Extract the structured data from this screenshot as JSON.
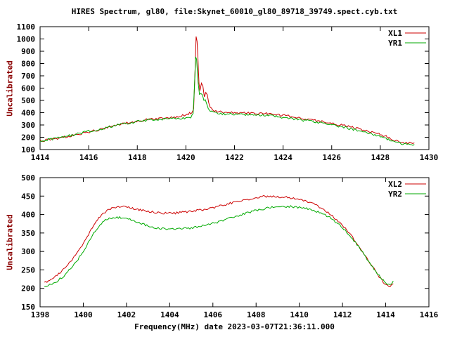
{
  "title": "HIRES Spectrum, gl80, file:Skynet_60010_gl80_89718_39749.spect.cyb.txt",
  "colors": {
    "red": "#cc0000",
    "green": "#00aa00",
    "text": "#000000",
    "ylabel_text": "#8b0000"
  },
  "chart_data": [
    {
      "type": "line",
      "ylabel": "Uncalibrated",
      "xlabel": "",
      "xlim": [
        1414,
        1430
      ],
      "ylim": [
        100,
        1100
      ],
      "xticks": [
        1414,
        1416,
        1418,
        1420,
        1422,
        1424,
        1426,
        1428,
        1430
      ],
      "yticks": [
        100,
        200,
        300,
        400,
        500,
        600,
        700,
        800,
        900,
        1000,
        1100
      ],
      "legend_position": "top-right",
      "grid": false,
      "series": [
        {
          "name": "XL1",
          "color": "#cc0000",
          "points": [
            [
              1414.0,
              170
            ],
            [
              1414.3,
              178
            ],
            [
              1414.6,
              188
            ],
            [
              1415.0,
              202
            ],
            [
              1415.4,
              218
            ],
            [
              1415.8,
              235
            ],
            [
              1416.2,
              252
            ],
            [
              1416.6,
              268
            ],
            [
              1417.0,
              292
            ],
            [
              1417.4,
              310
            ],
            [
              1417.8,
              325
            ],
            [
              1418.2,
              338
            ],
            [
              1418.6,
              348
            ],
            [
              1419.0,
              355
            ],
            [
              1419.4,
              362
            ],
            [
              1419.8,
              372
            ],
            [
              1420.0,
              385
            ],
            [
              1420.15,
              395
            ],
            [
              1420.25,
              400
            ],
            [
              1420.32,
              430
            ],
            [
              1420.38,
              760
            ],
            [
              1420.42,
              1020
            ],
            [
              1420.46,
              980
            ],
            [
              1420.5,
              820
            ],
            [
              1420.54,
              640
            ],
            [
              1420.58,
              580
            ],
            [
              1420.64,
              640
            ],
            [
              1420.7,
              615
            ],
            [
              1420.76,
              530
            ],
            [
              1420.82,
              560
            ],
            [
              1420.88,
              545
            ],
            [
              1420.94,
              480
            ],
            [
              1421.0,
              440
            ],
            [
              1421.1,
              420
            ],
            [
              1421.3,
              408
            ],
            [
              1421.6,
              402
            ],
            [
              1422.0,
              400
            ],
            [
              1422.4,
              398
            ],
            [
              1422.8,
              395
            ],
            [
              1423.2,
              392
            ],
            [
              1423.6,
              388
            ],
            [
              1424.0,
              378
            ],
            [
              1424.4,
              366
            ],
            [
              1424.8,
              352
            ],
            [
              1425.2,
              340
            ],
            [
              1425.6,
              328
            ],
            [
              1426.0,
              312
            ],
            [
              1426.4,
              298
            ],
            [
              1426.8,
              282
            ],
            [
              1427.2,
              264
            ],
            [
              1427.6,
              246
            ],
            [
              1428.0,
              224
            ],
            [
              1428.3,
              202
            ],
            [
              1428.6,
              175
            ],
            [
              1428.8,
              162
            ],
            [
              1429.0,
              156
            ],
            [
              1429.2,
              154
            ],
            [
              1429.4,
              155
            ]
          ]
        },
        {
          "name": "YR1",
          "color": "#00aa00",
          "points": [
            [
              1414.0,
              172
            ],
            [
              1414.4,
              182
            ],
            [
              1414.8,
              196
            ],
            [
              1415.2,
              212
            ],
            [
              1415.6,
              230
            ],
            [
              1416.0,
              248
            ],
            [
              1416.4,
              264
            ],
            [
              1416.8,
              282
            ],
            [
              1417.2,
              300
            ],
            [
              1417.6,
              315
            ],
            [
              1418.0,
              328
            ],
            [
              1418.4,
              338
            ],
            [
              1418.8,
              344
            ],
            [
              1419.2,
              348
            ],
            [
              1419.6,
              352
            ],
            [
              1420.0,
              358
            ],
            [
              1420.2,
              366
            ],
            [
              1420.3,
              395
            ],
            [
              1420.36,
              640
            ],
            [
              1420.4,
              855
            ],
            [
              1420.44,
              835
            ],
            [
              1420.5,
              650
            ],
            [
              1420.56,
              545
            ],
            [
              1420.62,
              560
            ],
            [
              1420.68,
              545
            ],
            [
              1420.74,
              495
            ],
            [
              1420.8,
              505
            ],
            [
              1420.86,
              470
            ],
            [
              1420.92,
              440
            ],
            [
              1421.0,
              415
            ],
            [
              1421.2,
              398
            ],
            [
              1421.5,
              390
            ],
            [
              1422.0,
              386
            ],
            [
              1422.5,
              383
            ],
            [
              1423.0,
              380
            ],
            [
              1423.5,
              374
            ],
            [
              1424.0,
              362
            ],
            [
              1424.5,
              348
            ],
            [
              1425.0,
              334
            ],
            [
              1425.5,
              318
            ],
            [
              1426.0,
              300
            ],
            [
              1426.5,
              280
            ],
            [
              1427.0,
              258
            ],
            [
              1427.5,
              234
            ],
            [
              1428.0,
              206
            ],
            [
              1428.4,
              176
            ],
            [
              1428.8,
              152
            ],
            [
              1429.1,
              143
            ],
            [
              1429.4,
              142
            ]
          ]
        }
      ]
    },
    {
      "type": "line",
      "ylabel": "Uncalibrated",
      "xlabel": "Frequency(MHz) date 2023-03-07T21:36:11.000",
      "xlim": [
        1398,
        1416
      ],
      "ylim": [
        150,
        500
      ],
      "xticks": [
        1398,
        1400,
        1402,
        1404,
        1406,
        1408,
        1410,
        1412,
        1414,
        1416
      ],
      "yticks": [
        150,
        200,
        250,
        300,
        350,
        400,
        450,
        500
      ],
      "legend_position": "top-right",
      "grid": false,
      "series": [
        {
          "name": "XL2",
          "color": "#cc0000",
          "points": [
            [
              1398.2,
              215
            ],
            [
              1398.5,
              222
            ],
            [
              1398.8,
              235
            ],
            [
              1399.1,
              252
            ],
            [
              1399.4,
              272
            ],
            [
              1399.7,
              296
            ],
            [
              1400.0,
              322
            ],
            [
              1400.3,
              352
            ],
            [
              1400.6,
              382
            ],
            [
              1400.9,
              402
            ],
            [
              1401.2,
              414
            ],
            [
              1401.5,
              420
            ],
            [
              1401.8,
              422
            ],
            [
              1402.1,
              420
            ],
            [
              1402.4,
              415
            ],
            [
              1402.7,
              411
            ],
            [
              1403.0,
              408
            ],
            [
              1403.4,
              405
            ],
            [
              1403.8,
              404
            ],
            [
              1404.2,
              404
            ],
            [
              1404.6,
              406
            ],
            [
              1405.0,
              409
            ],
            [
              1405.4,
              412
            ],
            [
              1405.8,
              416
            ],
            [
              1406.2,
              421
            ],
            [
              1406.6,
              427
            ],
            [
              1407.0,
              433
            ],
            [
              1407.4,
              439
            ],
            [
              1407.8,
              444
            ],
            [
              1408.2,
              448
            ],
            [
              1408.6,
              450
            ],
            [
              1409.0,
              449
            ],
            [
              1409.4,
              447
            ],
            [
              1409.8,
              443
            ],
            [
              1410.2,
              438
            ],
            [
              1410.6,
              430
            ],
            [
              1411.0,
              418
            ],
            [
              1411.4,
              402
            ],
            [
              1411.8,
              382
            ],
            [
              1412.2,
              358
            ],
            [
              1412.6,
              328
            ],
            [
              1413.0,
              294
            ],
            [
              1413.4,
              258
            ],
            [
              1413.7,
              232
            ],
            [
              1414.0,
              210
            ],
            [
              1414.2,
              205
            ],
            [
              1414.35,
              212
            ]
          ]
        },
        {
          "name": "YR2",
          "color": "#00aa00",
          "points": [
            [
              1398.2,
              205
            ],
            [
              1398.5,
              210
            ],
            [
              1398.8,
              220
            ],
            [
              1399.1,
              234
            ],
            [
              1399.4,
              252
            ],
            [
              1399.7,
              274
            ],
            [
              1400.0,
              300
            ],
            [
              1400.3,
              330
            ],
            [
              1400.6,
              360
            ],
            [
              1400.9,
              380
            ],
            [
              1401.2,
              389
            ],
            [
              1401.5,
              392
            ],
            [
              1401.8,
              391
            ],
            [
              1402.1,
              387
            ],
            [
              1402.4,
              381
            ],
            [
              1402.7,
              375
            ],
            [
              1403.0,
              370
            ],
            [
              1403.4,
              364
            ],
            [
              1403.8,
              361
            ],
            [
              1404.2,
              360
            ],
            [
              1404.6,
              361
            ],
            [
              1405.0,
              364
            ],
            [
              1405.4,
              368
            ],
            [
              1405.8,
              373
            ],
            [
              1406.2,
              379
            ],
            [
              1406.6,
              386
            ],
            [
              1407.0,
              394
            ],
            [
              1407.4,
              401
            ],
            [
              1407.8,
              408
            ],
            [
              1408.2,
              414
            ],
            [
              1408.6,
              418
            ],
            [
              1409.0,
              421
            ],
            [
              1409.4,
              422
            ],
            [
              1409.8,
              421
            ],
            [
              1410.2,
              418
            ],
            [
              1410.6,
              413
            ],
            [
              1411.0,
              404
            ],
            [
              1411.4,
              392
            ],
            [
              1411.8,
              375
            ],
            [
              1412.2,
              352
            ],
            [
              1412.6,
              324
            ],
            [
              1413.0,
              292
            ],
            [
              1413.4,
              258
            ],
            [
              1413.7,
              234
            ],
            [
              1414.0,
              214
            ],
            [
              1414.2,
              210
            ],
            [
              1414.35,
              220
            ]
          ]
        }
      ]
    }
  ]
}
